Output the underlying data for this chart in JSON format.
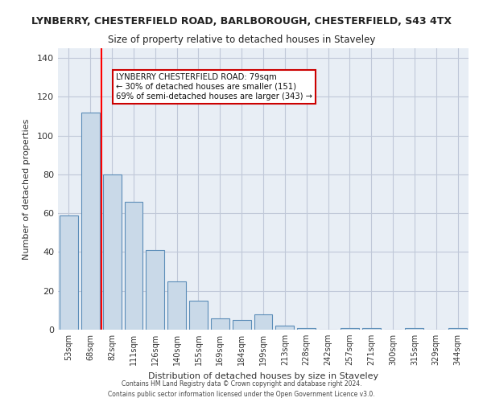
{
  "title_line1": "LYNBERRY, CHESTERFIELD ROAD, BARLBOROUGH, CHESTERFIELD, S43 4TX",
  "title_line2": "Size of property relative to detached houses in Staveley",
  "xlabel": "Distribution of detached houses by size in Staveley",
  "ylabel": "Number of detached properties",
  "categories": [
    "53sqm",
    "68sqm",
    "82sqm",
    "111sqm",
    "126sqm",
    "140sqm",
    "155sqm",
    "169sqm",
    "184sqm",
    "199sqm",
    "213sqm",
    "228sqm",
    "242sqm",
    "257sqm",
    "271sqm",
    "300sqm",
    "315sqm",
    "329sqm",
    "344sqm"
  ],
  "values": [
    59,
    112,
    80,
    66,
    41,
    25,
    15,
    6,
    5,
    8,
    2,
    1,
    0,
    1,
    1,
    0,
    1,
    0,
    1
  ],
  "bar_color": "#c9d9e8",
  "bar_edge_color": "#5b8db8",
  "red_line_x": 1.5,
  "annotation_text": "LYNBERRY CHESTERFIELD ROAD: 79sqm\n← 30% of detached houses are smaller (151)\n69% of semi-detached houses are larger (343) →",
  "annotation_box_color": "#ffffff",
  "annotation_box_edge": "#cc0000",
  "ylim": [
    0,
    145
  ],
  "yticks": [
    0,
    20,
    40,
    60,
    80,
    100,
    120,
    140
  ],
  "grid_color": "#c0c8d8",
  "background_color": "#e8eef5",
  "footer_line1": "Contains HM Land Registry data © Crown copyright and database right 2024.",
  "footer_line2": "Contains public sector information licensed under the Open Government Licence v3.0."
}
